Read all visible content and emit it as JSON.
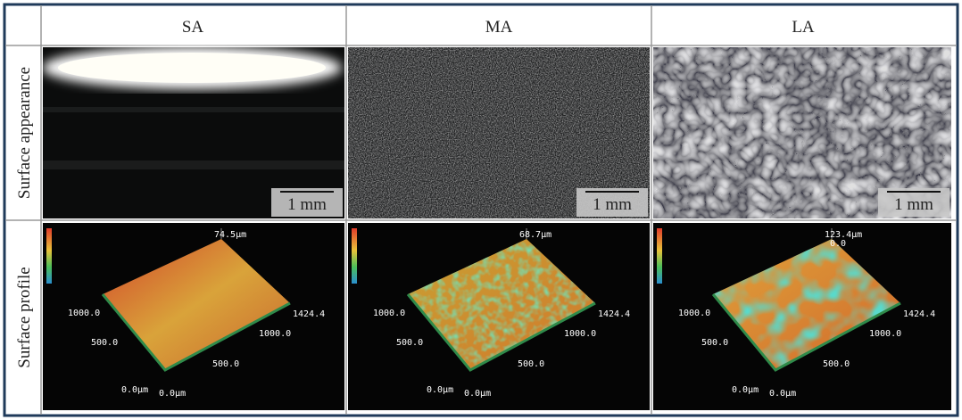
{
  "table": {
    "columns": [
      "SA",
      "MA",
      "LA"
    ],
    "rows": [
      {
        "label": "Surface appearance",
        "scale_bars": [
          "1 mm",
          "1 mm",
          "1 mm"
        ]
      },
      {
        "label": "Surface profile",
        "profiles": [
          {
            "peak": "74.5μm",
            "y_labels": [
              "1000.0",
              "500.0",
              "0.0μm"
            ],
            "x_labels": [
              "1424.4",
              "1000.0",
              "500.0",
              "0.0μm"
            ]
          },
          {
            "peak": "68.7μm",
            "y_labels": [
              "1000.0",
              "500.0",
              "0.0μm"
            ],
            "x_labels": [
              "1424.4",
              "1000.0",
              "500.0",
              "0.0μm"
            ]
          },
          {
            "peak": "123.4μm",
            "min": "0.0",
            "y_labels": [
              "1000.0",
              "500.0",
              "0.0μm"
            ],
            "x_labels": [
              "1424.4",
              "1000.0",
              "500.0",
              "0.0μm"
            ]
          }
        ]
      }
    ]
  }
}
